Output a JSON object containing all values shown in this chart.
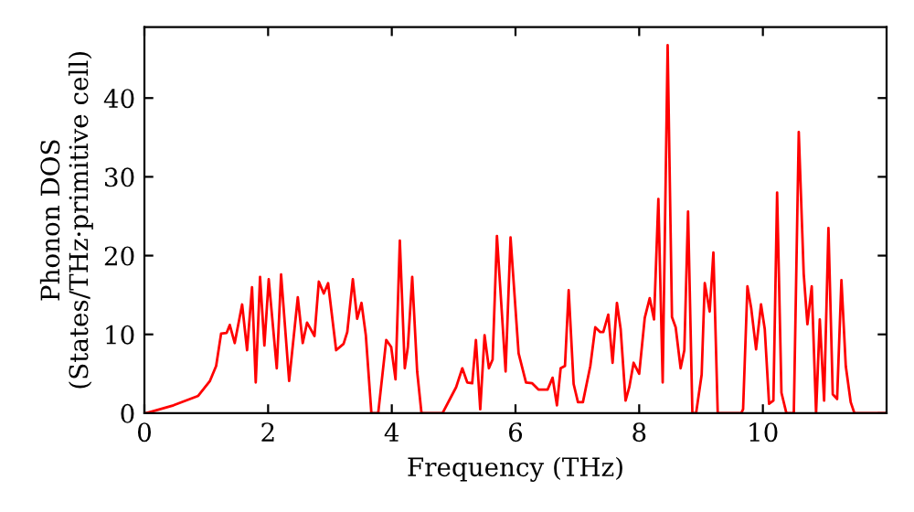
{
  "chart_data": {
    "type": "line",
    "xlabel": "Frequency (THz)",
    "ylabel": "Phonon DOS\n(States/THz·primitive cell)",
    "xlim": [
      0,
      12
    ],
    "ylim": [
      0,
      49
    ],
    "xticks": [
      0,
      2,
      4,
      6,
      8,
      10
    ],
    "yticks": [
      0,
      10,
      20,
      30,
      40
    ],
    "grid": false,
    "legend": false,
    "line_style": "solid",
    "marker": "none",
    "series": [
      {
        "color": "#ff0000",
        "x": [
          0.03,
          0.47,
          0.87,
          1.06,
          1.16,
          1.24,
          1.33,
          1.38,
          1.46,
          1.58,
          1.66,
          1.74,
          1.8,
          1.87,
          1.94,
          2.01,
          2.14,
          2.21,
          2.34,
          2.48,
          2.56,
          2.63,
          2.75,
          2.82,
          2.9,
          2.97,
          3.1,
          3.22,
          3.28,
          3.37,
          3.44,
          3.51,
          3.58,
          3.67,
          3.78,
          3.91,
          3.99,
          4.06,
          4.13,
          4.21,
          4.26,
          4.33,
          4.41,
          4.48,
          4.82,
          5.04,
          5.14,
          5.22,
          5.3,
          5.36,
          5.43,
          5.5,
          5.57,
          5.63,
          5.7,
          5.84,
          5.92,
          6.05,
          6.17,
          6.27,
          6.37,
          6.52,
          6.6,
          6.67,
          6.73,
          6.8,
          6.86,
          6.94,
          7.01,
          7.09,
          7.21,
          7.29,
          7.37,
          7.42,
          7.5,
          7.57,
          7.64,
          7.7,
          7.78,
          7.84,
          7.91,
          8.0,
          8.09,
          8.17,
          8.24,
          8.31,
          8.38,
          8.46,
          8.53,
          8.59,
          8.67,
          8.73,
          8.79,
          8.86,
          8.92,
          9.01,
          9.06,
          9.14,
          9.2,
          9.27,
          9.65,
          9.68,
          9.75,
          9.81,
          9.89,
          9.97,
          10.03,
          10.1,
          10.17,
          10.23,
          10.3,
          10.38,
          10.5,
          10.58,
          10.66,
          10.72,
          10.79,
          10.86,
          10.92,
          10.99,
          11.06,
          11.13,
          11.2,
          11.27,
          11.34,
          11.42,
          11.48,
          11.98
        ],
        "values": [
          0,
          1,
          2.2,
          4.1,
          6,
          10.1,
          10.2,
          11.2,
          8.9,
          13.8,
          8,
          16,
          3.9,
          17.3,
          8.6,
          17,
          5.7,
          17.6,
          4.1,
          14.7,
          8.9,
          11.5,
          9.8,
          16.7,
          15.2,
          16.5,
          8,
          8.8,
          10.3,
          17,
          12,
          14,
          9.9,
          0,
          0,
          9.3,
          8.4,
          4.3,
          21.9,
          5.7,
          8.4,
          17.3,
          5.3,
          0,
          0,
          3.3,
          5.7,
          3.9,
          3.8,
          9.3,
          0.5,
          9.9,
          5.7,
          6.8,
          22.5,
          5.3,
          22.3,
          7.6,
          3.9,
          3.8,
          3,
          3,
          4.5,
          1,
          5.7,
          6,
          15.6,
          3.7,
          1.4,
          1.4,
          6,
          10.9,
          10.3,
          10.3,
          12.5,
          6.4,
          14,
          10.7,
          1.6,
          3.3,
          6.4,
          5,
          12.1,
          14.6,
          11.9,
          27.2,
          3.9,
          46.7,
          12.2,
          10.9,
          5.7,
          8,
          25.6,
          0,
          0,
          4.9,
          16.5,
          12.9,
          20.4,
          0,
          0,
          0.5,
          16.1,
          13.4,
          8.1,
          13.8,
          10.7,
          1.2,
          1.6,
          28,
          2.6,
          0,
          0,
          35.7,
          17.7,
          11.3,
          16.1,
          0,
          11.9,
          1.6,
          23.5,
          2.4,
          1.8,
          16.9,
          6,
          1.4,
          0,
          0
        ]
      }
    ]
  }
}
